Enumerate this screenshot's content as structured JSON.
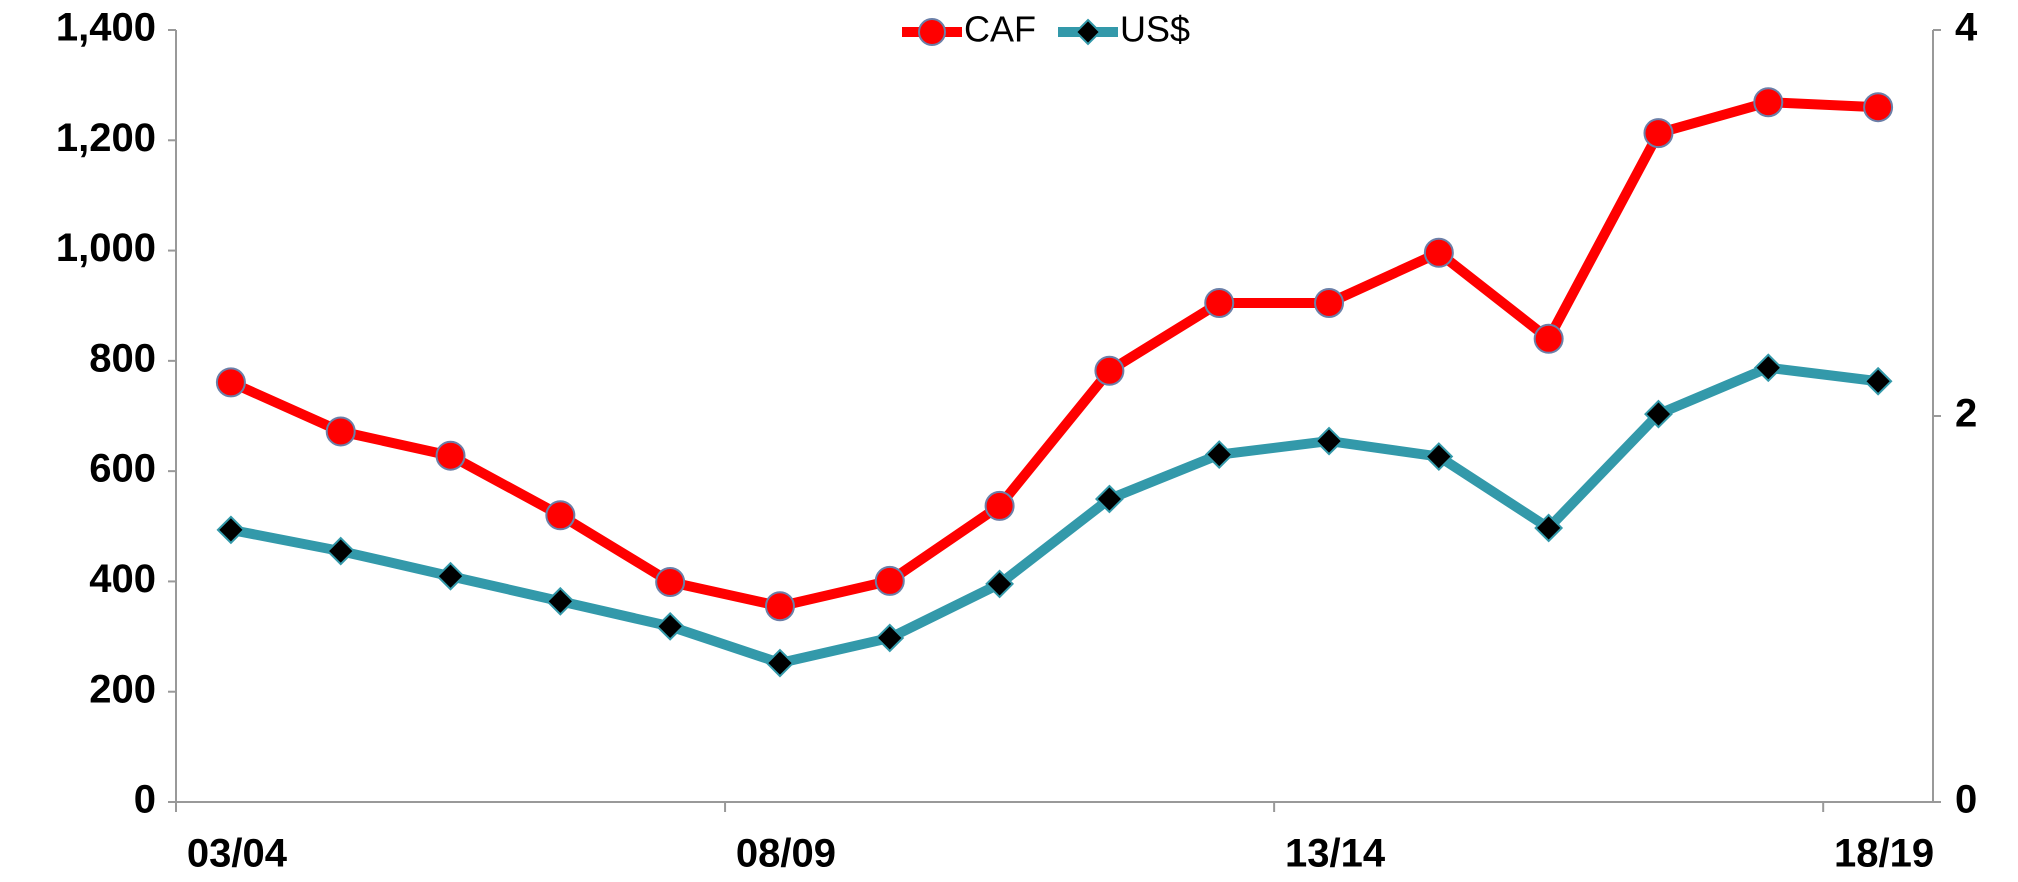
{
  "chart_data": {
    "type": "line",
    "categories": [
      "03/04",
      null,
      null,
      null,
      null,
      "08/09",
      null,
      null,
      null,
      null,
      "13/14",
      null,
      null,
      null,
      null,
      "18/19"
    ],
    "series": [
      {
        "name": "CAF",
        "color": "#ff0000",
        "marker": "circle",
        "values": [
          761,
          672,
          628,
          520,
          399,
          355,
          401,
          537,
          782,
          905,
          905,
          996,
          840,
          1213,
          1269,
          1260
        ]
      },
      {
        "name": "US$",
        "color": "#3399aa",
        "marker": "diamond",
        "axis": "y2",
        "values": [
          1.41,
          1.3,
          1.17,
          1.04,
          0.91,
          0.72,
          0.85,
          1.13,
          1.57,
          1.8,
          1.87,
          1.79,
          1.42,
          2.01,
          2.25,
          2.18
        ]
      }
    ],
    "ylim": [
      0,
      1400
    ],
    "yticks": [
      0,
      200,
      400,
      600,
      800,
      {
        "value": 1000,
        "label": "1,000"
      },
      {
        "value": 1200,
        "label": "1,200"
      },
      {
        "value": 1400,
        "label": "1,400"
      }
    ],
    "y2lim": [
      0,
      4
    ],
    "y2ticks": [
      0,
      2,
      4
    ],
    "legend": "top"
  }
}
